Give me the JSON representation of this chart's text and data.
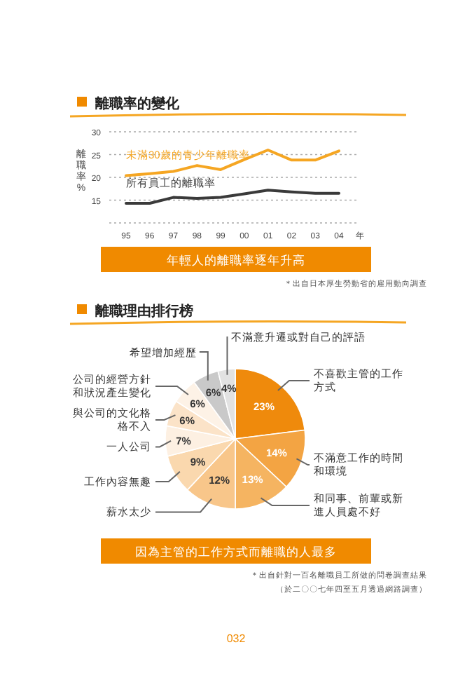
{
  "chart_data": [
    {
      "type": "line",
      "title": "離職率的變化",
      "ylabel": "離職率%",
      "xlabel": "年",
      "categories": [
        "95",
        "96",
        "97",
        "98",
        "99",
        "00",
        "01",
        "02",
        "03",
        "04"
      ],
      "series": [
        {
          "name": "未滿30歲的青少年離職率",
          "color": "#f5a623",
          "values": [
            20.4,
            20.8,
            21.3,
            22.6,
            21.7,
            23.9,
            26.0,
            23.8,
            23.8,
            25.8
          ]
        },
        {
          "name": "所有員工的離職率",
          "color": "#3a3a3a",
          "values": [
            14.3,
            14.3,
            15.6,
            15.4,
            15.6,
            16.4,
            17.2,
            16.8,
            16.5,
            16.5
          ]
        }
      ],
      "ylim": [
        10,
        30
      ],
      "yticks": [
        {
          "value": 10,
          "label": null
        },
        15,
        20,
        25,
        30
      ],
      "grid": "y",
      "marker": "none",
      "line_style": "solid",
      "annotations": [
        "年輕人的離職率逐年升高",
        "＊出自日本厚生勞動省的雇用動向調查"
      ]
    },
    {
      "type": "pie",
      "title": "離職理由排行榜",
      "categories": [
        "不喜歡主管的工作方式",
        "不滿意工作的時間和環境",
        "和同事、前輩或新進人員處不好",
        "薪水太少",
        "工作內容無趣",
        "一人公司",
        "與公司的文化格格不入",
        "公司的經營方針和狀況產生變化",
        "希望增加經歷",
        "不滿意升遷或對自己的評語"
      ],
      "values": [
        23,
        14,
        13,
        12,
        9,
        7,
        6,
        6,
        6,
        4
      ],
      "colors": [
        "#ef8a0c",
        "#f3a443",
        "#f5b461",
        "#f8c68a",
        "#fad8ae",
        "#fdf0e2",
        "#fbe3c8",
        "#fdf2e6",
        "#c9c9c9",
        "#e2e2e2"
      ],
      "value_labels": [
        "23%",
        "14%",
        "13%",
        "12%",
        "9%",
        "7%",
        "6%",
        "6%",
        "6%",
        "4%"
      ],
      "annotations": [
        "因為主管的工作方式而離職的人最多",
        "＊出自針對一百名離職員工所做的問卷調查結果",
        "（於二〇〇七年四至五月透過網路調查）",
        "032"
      ]
    }
  ]
}
